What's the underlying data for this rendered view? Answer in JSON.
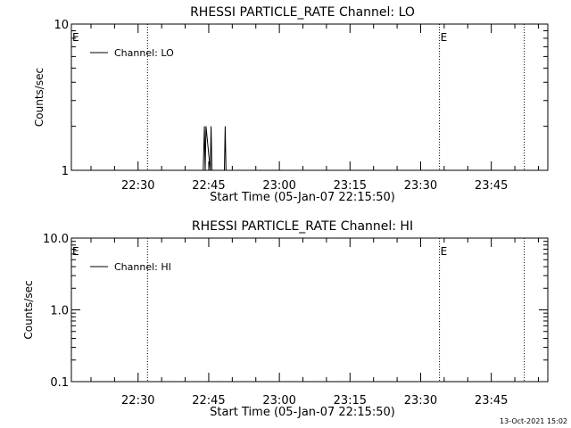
{
  "footer": {
    "timestamp": "13-Oct-2021 15:02"
  },
  "chart_data": [
    {
      "type": "line",
      "title": "RHESSI PARTICLE_RATE Channel: LO",
      "xlabel": "Start Time (05-Jan-07 22:15:50)",
      "ylabel": "Counts/sec",
      "yscale": "log",
      "ylim": [
        1,
        10
      ],
      "x_unit": "HH:MM on 05-Jan-07",
      "xlim": [
        "22:15:50",
        "23:57:00"
      ],
      "x_ticks": [
        "22:30",
        "22:45",
        "23:00",
        "23:15",
        "23:30",
        "23:45"
      ],
      "y_ticks": [
        "1",
        "10"
      ],
      "legend": {
        "position": "top-left",
        "entries": [
          "Channel: LO"
        ]
      },
      "event_lines": [
        {
          "time": "22:32",
          "label": ""
        },
        {
          "time": "23:34",
          "label": "E"
        },
        {
          "time": "23:52",
          "label": ""
        }
      ],
      "start_marker": "E",
      "series": [
        {
          "name": "Channel: LO",
          "x": [
            "22:43:50",
            "22:44:05",
            "22:44:15",
            "22:44:25",
            "22:45:20",
            "22:45:30",
            "22:45:40",
            "22:48:20",
            "22:48:30",
            "22:48:40"
          ],
          "values": [
            1,
            2,
            1,
            2,
            1,
            2,
            1,
            1,
            2,
            1
          ]
        }
      ]
    },
    {
      "type": "line",
      "title": "RHESSI PARTICLE_RATE Channel: HI",
      "xlabel": "Start Time (05-Jan-07 22:15:50)",
      "ylabel": "Counts/sec",
      "yscale": "log",
      "ylim": [
        0.1,
        10
      ],
      "x_unit": "HH:MM on 05-Jan-07",
      "xlim": [
        "22:15:50",
        "23:57:00"
      ],
      "x_ticks": [
        "22:30",
        "22:45",
        "23:00",
        "23:15",
        "23:30",
        "23:45"
      ],
      "y_ticks": [
        "0.1",
        "1.0",
        "10.0"
      ],
      "legend": {
        "position": "top-left",
        "entries": [
          "Channel: HI"
        ]
      },
      "event_lines": [
        {
          "time": "22:32",
          "label": ""
        },
        {
          "time": "23:34",
          "label": "E"
        },
        {
          "time": "23:52",
          "label": ""
        }
      ],
      "start_marker": "E",
      "series": [
        {
          "name": "Channel: HI",
          "x": [],
          "values": []
        }
      ]
    }
  ]
}
